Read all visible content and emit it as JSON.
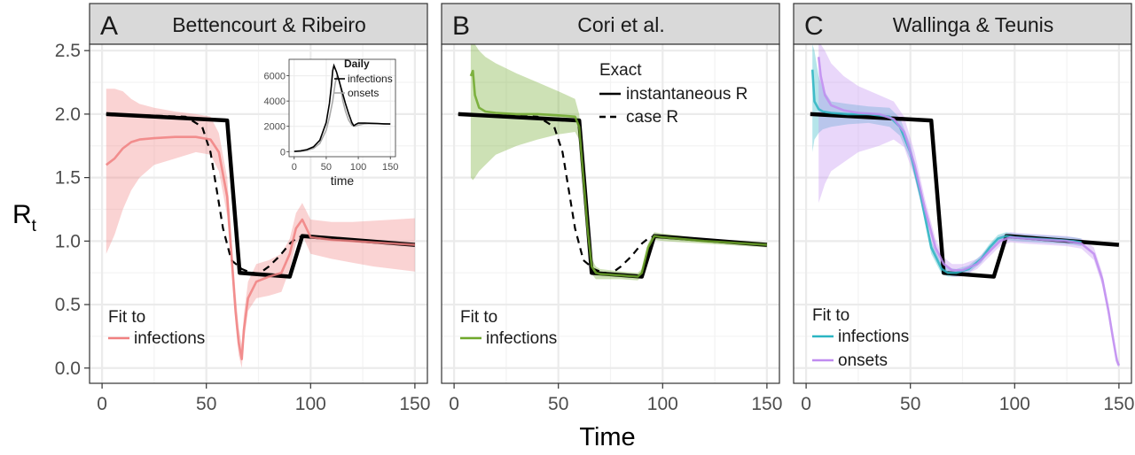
{
  "figure": {
    "ylabel": "R",
    "ylabel_sub": "t",
    "xlabel": "Time",
    "y_ticks": [
      "0.0",
      "0.5",
      "1.0",
      "1.5",
      "2.0",
      "2.5"
    ],
    "x_ticks": [
      "0",
      "50",
      "100",
      "150"
    ]
  },
  "colors": {
    "truth": "#000000",
    "bettencourt": "#F08080",
    "cori": "#6FA82A",
    "wallinga_infections": "#2BB5C2",
    "wallinga_onsets": "#C08CF0",
    "strip": "#D9D9D9",
    "grid": "#EBEBEB"
  },
  "panels": [
    {
      "letter": "A",
      "title": "Bettencourt & Ribeiro",
      "legend_title": "Fit to",
      "legend_items": [
        {
          "label": "infections",
          "color": "#F08080"
        }
      ]
    },
    {
      "letter": "B",
      "title": "Cori et al.",
      "legend_title": "Fit to",
      "legend_items": [
        {
          "label": "infections",
          "color": "#6FA82A"
        }
      ],
      "exact_legend": {
        "title": "Exact",
        "items": [
          {
            "label": "instantaneous R",
            "style": "solid"
          },
          {
            "label": "case R",
            "style": "dashed"
          }
        ]
      }
    },
    {
      "letter": "C",
      "title": "Wallinga & Teunis",
      "legend_title": "Fit to",
      "legend_items": [
        {
          "label": "infections",
          "color": "#2BB5C2"
        },
        {
          "label": "onsets",
          "color": "#C08CF0"
        }
      ]
    }
  ],
  "inset": {
    "title": "Daily",
    "xlabel": "time",
    "y_ticks": [
      "0",
      "2000",
      "4000",
      "6000"
    ],
    "x_ticks": [
      "0",
      "50",
      "100",
      "150"
    ],
    "legend_items": [
      {
        "label": "infections",
        "color": "#000000"
      },
      {
        "label": "onsets",
        "color": "#AAAAAA"
      }
    ]
  },
  "chart_data": [
    {
      "type": "line",
      "panel": "A",
      "title": "Bettencourt & Ribeiro",
      "xlabel": "Time",
      "ylabel": "R_t",
      "xlim": [
        -6,
        156
      ],
      "ylim": [
        -0.12,
        2.55
      ],
      "series": [
        {
          "role": "instantaneous R",
          "style": "solid",
          "color": "#000000",
          "x": [
            2,
            60,
            66,
            90,
            96,
            150
          ],
          "y": [
            2.0,
            1.95,
            0.75,
            0.72,
            1.04,
            0.97
          ]
        },
        {
          "role": "case R",
          "style": "dashed",
          "color": "#000000",
          "x": [
            2,
            40,
            48,
            52,
            55,
            58,
            62,
            67,
            70,
            75,
            80,
            85,
            90,
            93,
            96
          ],
          "y": [
            2.0,
            1.98,
            1.9,
            1.7,
            1.4,
            1.1,
            0.85,
            0.78,
            0.76,
            0.74,
            0.8,
            0.88,
            0.98,
            1.02,
            1.04
          ]
        },
        {
          "name": "infections",
          "color": "#F08080",
          "x": [
            2,
            6,
            10,
            14,
            18,
            25,
            35,
            45,
            52,
            56,
            60,
            62,
            64,
            65.5,
            67,
            68,
            70,
            74,
            80,
            86,
            90,
            93,
            96,
            100,
            110,
            120,
            130,
            140,
            150
          ],
          "y": [
            1.6,
            1.65,
            1.73,
            1.78,
            1.8,
            1.81,
            1.82,
            1.82,
            1.8,
            1.7,
            1.35,
            0.9,
            0.45,
            0.2,
            0.07,
            0.3,
            0.55,
            0.68,
            0.72,
            0.75,
            0.9,
            1.1,
            1.17,
            1.03,
            1.01,
            1.0,
            0.99,
            0.98,
            0.97
          ],
          "ci_low": [
            0.9,
            1.05,
            1.25,
            1.4,
            1.5,
            1.6,
            1.65,
            1.7,
            1.68,
            1.55,
            1.2,
            0.8,
            0.35,
            0.1,
            0.0,
            0.2,
            0.45,
            0.55,
            0.57,
            0.6,
            0.78,
            0.98,
            1.05,
            0.9,
            0.86,
            0.83,
            0.8,
            0.78,
            0.76
          ],
          "ci_high": [
            2.2,
            2.2,
            2.18,
            2.12,
            2.08,
            2.05,
            2.02,
            2.0,
            1.98,
            1.85,
            1.5,
            1.05,
            0.6,
            0.32,
            0.18,
            0.42,
            0.68,
            0.82,
            0.85,
            0.9,
            1.02,
            1.22,
            1.3,
            1.17,
            1.15,
            1.15,
            1.16,
            1.17,
            1.18
          ]
        }
      ],
      "grid": true,
      "legend": "bottom-left"
    },
    {
      "type": "line",
      "panel": "B",
      "title": "Cori et al.",
      "xlabel": "Time",
      "ylabel": "R_t",
      "xlim": [
        -6,
        156
      ],
      "ylim": [
        -0.12,
        2.55
      ],
      "series": [
        {
          "role": "instantaneous R",
          "style": "solid",
          "color": "#000000",
          "x": [
            2,
            60,
            66,
            90,
            96,
            150
          ],
          "y": [
            2.0,
            1.95,
            0.75,
            0.72,
            1.04,
            0.97
          ]
        },
        {
          "role": "case R",
          "style": "dashed",
          "color": "#000000",
          "x": [
            2,
            40,
            48,
            52,
            55,
            58,
            62,
            67,
            70,
            75,
            80,
            85,
            90,
            93,
            96
          ],
          "y": [
            2.0,
            1.98,
            1.9,
            1.7,
            1.4,
            1.1,
            0.85,
            0.78,
            0.76,
            0.74,
            0.8,
            0.88,
            0.98,
            1.02,
            1.04
          ]
        },
        {
          "name": "infections",
          "color": "#6FA82A",
          "x": [
            8,
            9,
            10,
            12,
            15,
            20,
            30,
            40,
            50,
            58,
            60,
            62,
            64,
            66,
            68,
            70,
            80,
            88,
            90,
            93,
            96,
            100,
            120,
            150
          ],
          "y": [
            2.3,
            2.34,
            2.15,
            2.05,
            2.02,
            2.01,
            2.0,
            2.0,
            1.99,
            1.98,
            1.9,
            1.5,
            1.1,
            0.8,
            0.75,
            0.74,
            0.73,
            0.72,
            0.75,
            0.95,
            1.04,
            1.03,
            1.0,
            0.97
          ],
          "ci_low": [
            1.5,
            1.48,
            1.5,
            1.55,
            1.6,
            1.68,
            1.75,
            1.8,
            1.84,
            1.86,
            1.8,
            1.4,
            1.0,
            0.74,
            0.7,
            0.7,
            0.7,
            0.69,
            0.72,
            0.92,
            1.01,
            1.0,
            0.98,
            0.95
          ],
          "ci_high": [
            2.55,
            2.55,
            2.55,
            2.5,
            2.45,
            2.4,
            2.32,
            2.25,
            2.18,
            2.12,
            2.0,
            1.6,
            1.2,
            0.86,
            0.8,
            0.78,
            0.76,
            0.75,
            0.78,
            0.98,
            1.07,
            1.06,
            1.02,
            0.99
          ]
        }
      ],
      "grid": true,
      "legend": "top-right, bottom-left"
    },
    {
      "type": "line",
      "panel": "C",
      "title": "Wallinga & Teunis",
      "xlabel": "Time",
      "ylabel": "R_t",
      "xlim": [
        -6,
        156
      ],
      "ylim": [
        -0.12,
        2.55
      ],
      "series": [
        {
          "role": "instantaneous R",
          "style": "solid",
          "color": "#000000",
          "x": [
            2,
            60,
            66,
            90,
            96,
            150
          ],
          "y": [
            2.0,
            1.95,
            0.75,
            0.72,
            1.04,
            0.97
          ]
        },
        {
          "name": "infections",
          "color": "#2BB5C2",
          "x": [
            3,
            4,
            6,
            8,
            12,
            20,
            30,
            40,
            45,
            50,
            55,
            60,
            65,
            68,
            72,
            78,
            84,
            88,
            92,
            96,
            100,
            110,
            120,
            128,
            132
          ],
          "y": [
            2.35,
            2.1,
            2.04,
            2.02,
            2.01,
            2.0,
            2.0,
            1.98,
            1.9,
            1.7,
            1.35,
            0.95,
            0.78,
            0.75,
            0.75,
            0.78,
            0.86,
            0.95,
            1.02,
            1.04,
            1.03,
            1.02,
            1.01,
            1.0,
            0.99
          ],
          "ci_low": [
            1.7,
            1.8,
            1.85,
            1.88,
            1.9,
            1.92,
            1.93,
            1.9,
            1.83,
            1.64,
            1.3,
            0.9,
            0.74,
            0.72,
            0.72,
            0.75,
            0.83,
            0.92,
            0.99,
            1.01,
            1.0,
            0.99,
            0.98,
            0.97,
            0.96
          ],
          "ci_high": [
            2.55,
            2.5,
            2.3,
            2.2,
            2.1,
            2.08,
            2.06,
            2.05,
            1.97,
            1.76,
            1.4,
            1.0,
            0.82,
            0.79,
            0.78,
            0.81,
            0.89,
            0.98,
            1.05,
            1.07,
            1.06,
            1.05,
            1.04,
            1.03,
            1.02
          ]
        },
        {
          "name": "onsets",
          "color": "#C08CF0",
          "x": [
            6,
            7,
            9,
            12,
            18,
            25,
            35,
            42,
            47,
            52,
            57,
            62,
            66,
            70,
            75,
            82,
            88,
            93,
            98,
            105,
            115,
            125,
            132,
            138,
            142,
            145,
            147,
            149,
            150
          ],
          "y": [
            2.45,
            2.3,
            2.15,
            2.07,
            2.03,
            2.01,
            2.0,
            1.96,
            1.86,
            1.6,
            1.25,
            0.95,
            0.82,
            0.77,
            0.77,
            0.82,
            0.92,
            1.0,
            1.03,
            1.02,
            1.01,
            1.0,
            0.98,
            0.9,
            0.7,
            0.45,
            0.25,
            0.06,
            0.02
          ],
          "ci_low": [
            1.3,
            1.35,
            1.45,
            1.55,
            1.62,
            1.7,
            1.75,
            1.8,
            1.74,
            1.5,
            1.17,
            0.88,
            0.77,
            0.72,
            0.72,
            0.78,
            0.88,
            0.96,
            0.99,
            0.98,
            0.97,
            0.96,
            0.94,
            0.85,
            0.65,
            0.4,
            0.2,
            0.03,
            0.0
          ],
          "ci_high": [
            2.55,
            2.55,
            2.5,
            2.4,
            2.3,
            2.22,
            2.15,
            2.1,
            1.98,
            1.7,
            1.33,
            1.02,
            0.87,
            0.82,
            0.82,
            0.86,
            0.96,
            1.04,
            1.07,
            1.06,
            1.05,
            1.04,
            1.02,
            0.95,
            0.75,
            0.5,
            0.3,
            0.1,
            0.05
          ]
        }
      ],
      "grid": true,
      "legend": "bottom-left"
    },
    {
      "type": "line",
      "panel": "A-inset",
      "title": "Daily",
      "xlabel": "time",
      "xlim": [
        -8,
        158
      ],
      "ylim": [
        -400,
        7300
      ],
      "series": [
        {
          "name": "infections",
          "color": "#000000",
          "x": [
            0,
            10,
            20,
            30,
            40,
            50,
            55,
            58,
            60,
            62,
            66,
            70,
            75,
            80,
            85,
            90,
            93,
            96,
            100,
            110,
            120,
            130,
            140,
            150
          ],
          "y": [
            20,
            60,
            160,
            380,
            900,
            2300,
            3800,
            5200,
            6400,
            6800,
            6300,
            5600,
            4700,
            3800,
            3000,
            2300,
            2050,
            2150,
            2250,
            2260,
            2240,
            2220,
            2200,
            2180
          ]
        },
        {
          "name": "onsets",
          "color": "#AAAAAA",
          "x": [
            0,
            10,
            20,
            30,
            40,
            50,
            55,
            60,
            64,
            67,
            70,
            73,
            76,
            80,
            85,
            90,
            95,
            100,
            110,
            120,
            130,
            140,
            150
          ],
          "y": [
            5,
            30,
            100,
            260,
            650,
            1700,
            2700,
            4000,
            5400,
            6000,
            5700,
            4900,
            4000,
            3200,
            2500,
            2100,
            2000,
            2100,
            2200,
            2220,
            2210,
            2200,
            2190
          ]
        }
      ]
    }
  ]
}
